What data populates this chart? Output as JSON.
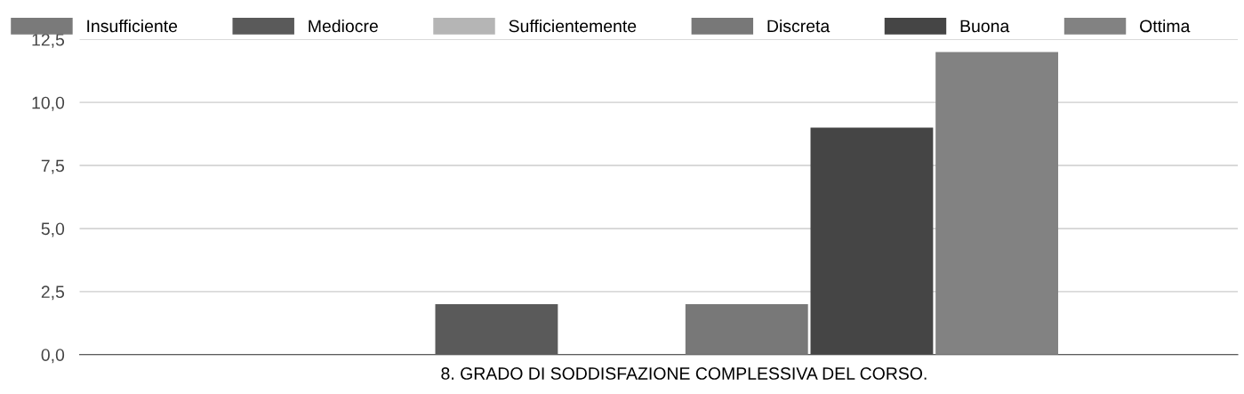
{
  "chart_data": {
    "type": "bar",
    "categories": [
      "8. GRADO DI SODDISFAZIONE COMPLESSIVA DEL CORSO."
    ],
    "series": [
      {
        "name": "Insufficiente",
        "color": "#7a7a7a",
        "values": [
          0
        ]
      },
      {
        "name": "Mediocre",
        "color": "#5a5a5a",
        "values": [
          2
        ]
      },
      {
        "name": "Sufficientemente",
        "color": "#b5b5b5",
        "values": [
          0
        ]
      },
      {
        "name": "Discreta",
        "color": "#787878",
        "values": [
          2
        ]
      },
      {
        "name": "Buona",
        "color": "#454545",
        "values": [
          9
        ]
      },
      {
        "name": "Ottima",
        "color": "#828282",
        "values": [
          12
        ]
      }
    ],
    "ylim": [
      0,
      12.5
    ],
    "yticks": [
      {
        "value": 0,
        "label": "0,0"
      },
      {
        "value": 2.5,
        "label": "2,5"
      },
      {
        "value": 5,
        "label": "5,0"
      },
      {
        "value": 7.5,
        "label": "7,5"
      },
      {
        "value": 10,
        "label": "10,0"
      },
      {
        "value": 12.5,
        "label": "12,5"
      }
    ],
    "grid": "y",
    "legend": "top"
  }
}
